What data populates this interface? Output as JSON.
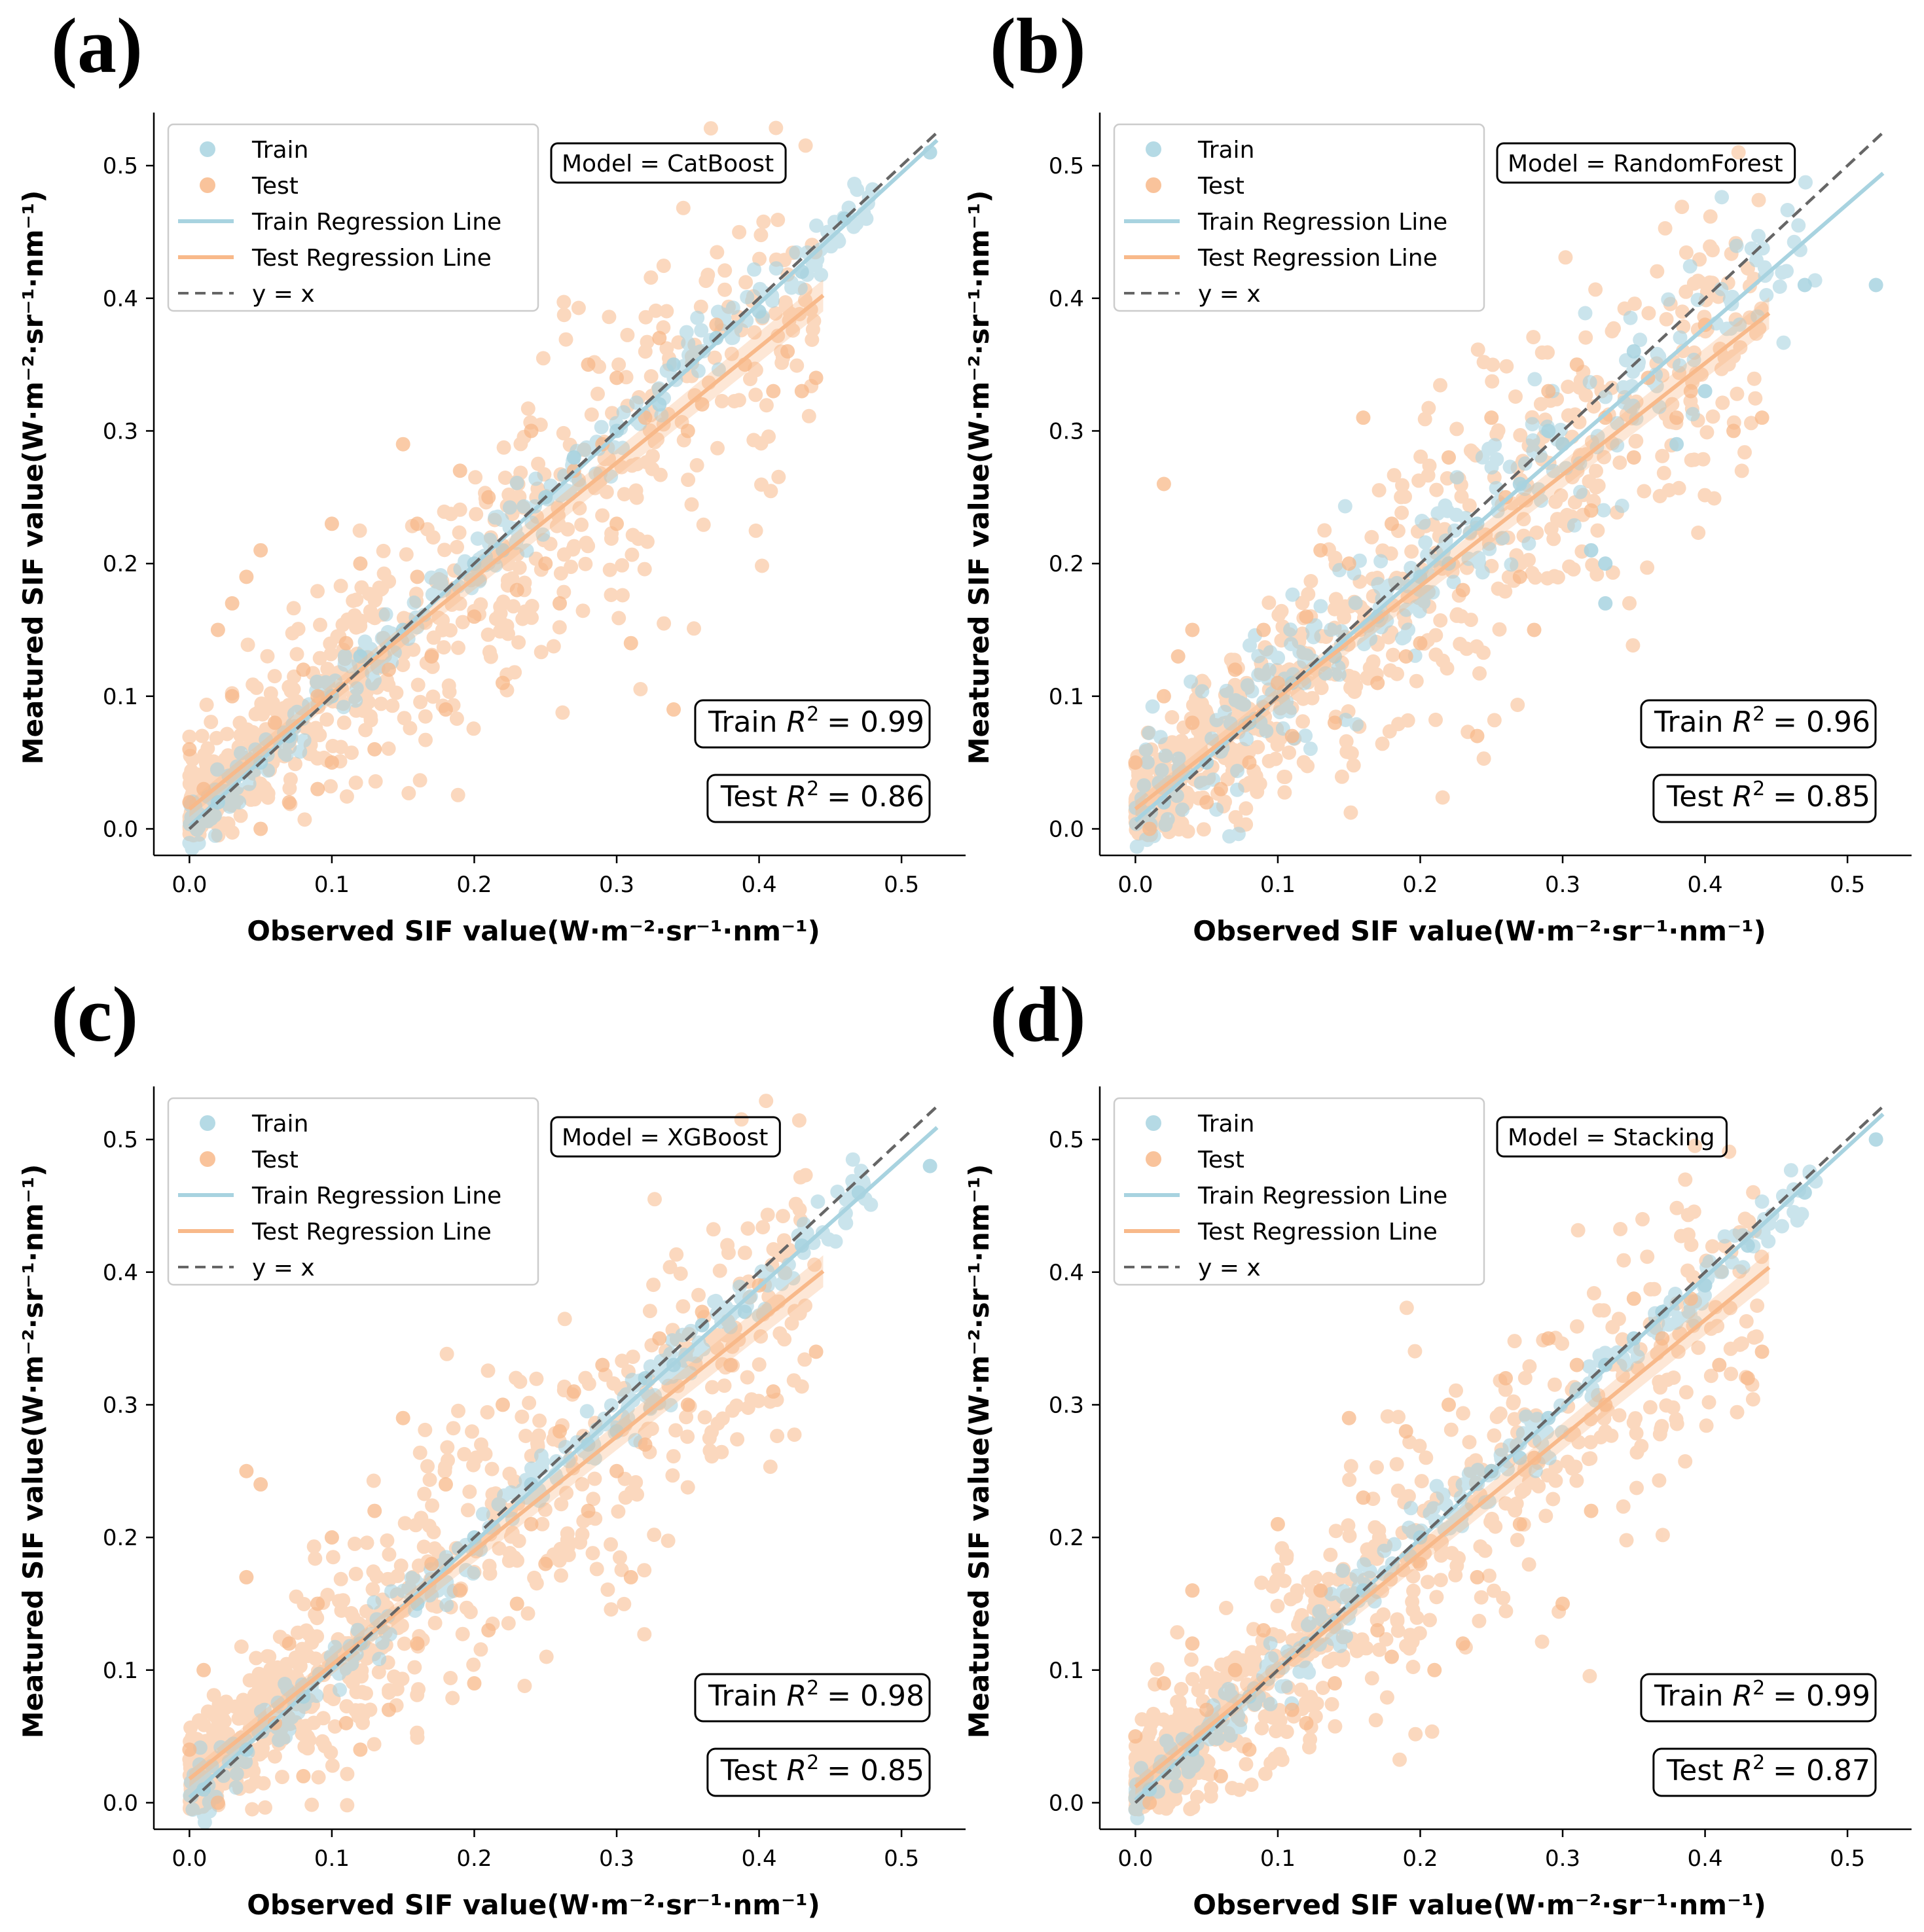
{
  "figure": {
    "x_axis_label": "Observed SIF value(W·m⁻²·sr⁻¹·nm⁻¹)",
    "y_axis_label": "Meatured SIF value(W·m⁻²·sr⁻¹·nm⁻¹)",
    "legend": {
      "train": "Train",
      "test": "Test",
      "train_line": "Train Regression Line",
      "test_line": "Test Regression Line",
      "identity": "y = x"
    },
    "r2_symbol": "R",
    "r2_exponent": "2"
  },
  "colors": {
    "train": "#a8d3e0",
    "test": "#f8b98a",
    "identity": "#666666",
    "axis": "#000000"
  },
  "chart_data": [
    {
      "type": "scatter",
      "panel": "(a)",
      "model_label": "Model = CatBoost",
      "train_r2_text": "Train",
      "train_r2_value": "= 0.99",
      "test_r2_text": "Test",
      "test_r2_value": "= 0.86",
      "train_r2": 0.99,
      "test_r2": 0.86,
      "train_line": {
        "slope": 0.985,
        "intercept": 0.002,
        "x_range": [
          0.0,
          0.525
        ]
      },
      "test_line": {
        "slope": 0.87,
        "intercept": 0.015,
        "x_range": [
          0.0,
          0.445
        ]
      },
      "xlim": [
        -0.025,
        0.545
      ],
      "ylim": [
        -0.02,
        0.54
      ],
      "xticks": [
        0.0,
        0.1,
        0.2,
        0.3,
        0.4,
        0.5
      ],
      "yticks": [
        0.0,
        0.1,
        0.2,
        0.3,
        0.4,
        0.5
      ],
      "tick_labels": [
        "0.0",
        "0.1",
        "0.2",
        "0.3",
        "0.4",
        "0.5"
      ],
      "test_points": [
        [
          0.0,
          0.06
        ],
        [
          0.02,
          0.15
        ],
        [
          0.03,
          0.17
        ],
        [
          0.05,
          0.21
        ],
        [
          0.04,
          0.19
        ],
        [
          0.01,
          0.03
        ],
        [
          0.03,
          0.1
        ],
        [
          0.06,
          0.08
        ],
        [
          0.08,
          0.12
        ],
        [
          0.1,
          0.23
        ],
        [
          0.1,
          0.05
        ],
        [
          0.12,
          0.2
        ],
        [
          0.14,
          0.12
        ],
        [
          0.15,
          0.29
        ],
        [
          0.16,
          0.23
        ],
        [
          0.17,
          0.13
        ],
        [
          0.19,
          0.27
        ],
        [
          0.2,
          0.16
        ],
        [
          0.22,
          0.11
        ],
        [
          0.24,
          0.3
        ],
        [
          0.25,
          0.2
        ],
        [
          0.27,
          0.27
        ],
        [
          0.28,
          0.35
        ],
        [
          0.3,
          0.34
        ],
        [
          0.3,
          0.23
        ],
        [
          0.31,
          0.14
        ],
        [
          0.33,
          0.37
        ],
        [
          0.34,
          0.09
        ],
        [
          0.35,
          0.3
        ],
        [
          0.37,
          0.38
        ],
        [
          0.39,
          0.35
        ],
        [
          0.41,
          0.33
        ],
        [
          0.43,
          0.33
        ],
        [
          0.44,
          0.34
        ],
        [
          0.42,
          0.36
        ],
        [
          0.07,
          0.02
        ],
        [
          0.09,
          0.03
        ],
        [
          0.13,
          0.06
        ],
        [
          0.18,
          0.09
        ],
        [
          0.23,
          0.18
        ],
        [
          0.26,
          0.17
        ],
        [
          0.29,
          0.29
        ],
        [
          0.32,
          0.31
        ],
        [
          0.36,
          0.32
        ],
        [
          0.05,
          0.0
        ],
        [
          0.0,
          0.02
        ],
        [
          0.11,
          0.14
        ],
        [
          0.21,
          0.25
        ],
        [
          0.16,
          0.19
        ],
        [
          0.09,
          0.1
        ]
      ],
      "train_points": [
        [
          0.46,
          0.46
        ],
        [
          0.52,
          0.51
        ],
        [
          0.4,
          0.39
        ],
        [
          0.37,
          0.37
        ],
        [
          0.34,
          0.35
        ],
        [
          0.3,
          0.3
        ],
        [
          0.25,
          0.25
        ],
        [
          0.2,
          0.2
        ],
        [
          0.15,
          0.15
        ],
        [
          0.1,
          0.1
        ],
        [
          0.05,
          0.05
        ],
        [
          0.02,
          0.02
        ],
        [
          0.43,
          0.42
        ],
        [
          0.33,
          0.32
        ],
        [
          0.27,
          0.28
        ],
        [
          0.22,
          0.21
        ],
        [
          0.12,
          0.13
        ],
        [
          0.07,
          0.07
        ]
      ]
    },
    {
      "type": "scatter",
      "panel": "(b)",
      "model_label": "Model = RandomForest",
      "train_r2_text": "Train",
      "train_r2_value": "= 0.96",
      "test_r2_text": "Test",
      "test_r2_value": "= 0.85",
      "train_r2": 0.96,
      "test_r2": 0.85,
      "train_line": {
        "slope": 0.93,
        "intercept": 0.006,
        "x_range": [
          0.0,
          0.525
        ]
      },
      "test_line": {
        "slope": 0.84,
        "intercept": 0.015,
        "x_range": [
          0.0,
          0.445
        ]
      },
      "xlim": [
        -0.025,
        0.545
      ],
      "ylim": [
        -0.02,
        0.54
      ],
      "xticks": [
        0.0,
        0.1,
        0.2,
        0.3,
        0.4,
        0.5
      ],
      "yticks": [
        0.0,
        0.1,
        0.2,
        0.3,
        0.4,
        0.5
      ],
      "tick_labels": [
        "0.0",
        "0.1",
        "0.2",
        "0.3",
        "0.4",
        "0.5"
      ],
      "test_points": [
        [
          0.0,
          0.05
        ],
        [
          0.02,
          0.1
        ],
        [
          0.03,
          0.13
        ],
        [
          0.04,
          0.15
        ],
        [
          0.06,
          0.03
        ],
        [
          0.07,
          0.12
        ],
        [
          0.09,
          0.15
        ],
        [
          0.1,
          0.11
        ],
        [
          0.12,
          0.16
        ],
        [
          0.13,
          0.21
        ],
        [
          0.15,
          0.2
        ],
        [
          0.16,
          0.31
        ],
        [
          0.17,
          0.11
        ],
        [
          0.18,
          0.23
        ],
        [
          0.2,
          0.14
        ],
        [
          0.22,
          0.28
        ],
        [
          0.23,
          0.18
        ],
        [
          0.25,
          0.31
        ],
        [
          0.26,
          0.25
        ],
        [
          0.27,
          0.19
        ],
        [
          0.29,
          0.33
        ],
        [
          0.3,
          0.29
        ],
        [
          0.31,
          0.35
        ],
        [
          0.33,
          0.31
        ],
        [
          0.35,
          0.28
        ],
        [
          0.36,
          0.34
        ],
        [
          0.38,
          0.31
        ],
        [
          0.4,
          0.38
        ],
        [
          0.42,
          0.3
        ],
        [
          0.44,
          0.31
        ],
        [
          0.02,
          0.26
        ],
        [
          0.05,
          0.02
        ],
        [
          0.08,
          0.05
        ],
        [
          0.11,
          0.07
        ],
        [
          0.14,
          0.08
        ],
        [
          0.19,
          0.13
        ],
        [
          0.24,
          0.07
        ],
        [
          0.28,
          0.15
        ],
        [
          0.32,
          0.24
        ],
        [
          0.39,
          0.33
        ],
        [
          0.01,
          0.0
        ],
        [
          0.04,
          0.08
        ]
      ],
      "train_points": [
        [
          0.52,
          0.41
        ],
        [
          0.47,
          0.41
        ],
        [
          0.4,
          0.33
        ],
        [
          0.38,
          0.29
        ],
        [
          0.33,
          0.17
        ],
        [
          0.33,
          0.2
        ],
        [
          0.32,
          0.21
        ],
        [
          0.3,
          0.29
        ],
        [
          0.27,
          0.26
        ],
        [
          0.24,
          0.23
        ],
        [
          0.2,
          0.19
        ],
        [
          0.17,
          0.16
        ],
        [
          0.14,
          0.13
        ],
        [
          0.11,
          0.11
        ],
        [
          0.08,
          0.08
        ],
        [
          0.05,
          0.05
        ],
        [
          0.02,
          0.02
        ],
        [
          0.35,
          0.36
        ],
        [
          0.22,
          0.2
        ],
        [
          0.29,
          0.3
        ]
      ]
    },
    {
      "type": "scatter",
      "panel": "(c)",
      "model_label": "Model = XGBoost",
      "train_r2_text": "Train",
      "train_r2_value": "= 0.98",
      "test_r2_text": "Test",
      "test_r2_value": "= 0.85",
      "train_r2": 0.98,
      "test_r2": 0.85,
      "train_line": {
        "slope": 0.962,
        "intercept": 0.004,
        "x_range": [
          0.0,
          0.525
        ]
      },
      "test_line": {
        "slope": 0.86,
        "intercept": 0.018,
        "x_range": [
          0.0,
          0.445
        ]
      },
      "xlim": [
        -0.025,
        0.545
      ],
      "ylim": [
        -0.02,
        0.54
      ],
      "xticks": [
        0.0,
        0.1,
        0.2,
        0.3,
        0.4,
        0.5
      ],
      "yticks": [
        0.0,
        0.1,
        0.2,
        0.3,
        0.4,
        0.5
      ],
      "tick_labels": [
        "0.0",
        "0.1",
        "0.2",
        "0.3",
        "0.4",
        "0.5"
      ],
      "test_points": [
        [
          0.0,
          0.04
        ],
        [
          0.01,
          0.1
        ],
        [
          0.04,
          0.25
        ],
        [
          0.05,
          0.24
        ],
        [
          0.04,
          0.17
        ],
        [
          0.06,
          0.06
        ],
        [
          0.07,
          0.12
        ],
        [
          0.09,
          0.15
        ],
        [
          0.1,
          0.2
        ],
        [
          0.11,
          0.06
        ],
        [
          0.13,
          0.22
        ],
        [
          0.15,
          0.29
        ],
        [
          0.16,
          0.12
        ],
        [
          0.18,
          0.24
        ],
        [
          0.19,
          0.16
        ],
        [
          0.2,
          0.09
        ],
        [
          0.22,
          0.3
        ],
        [
          0.24,
          0.21
        ],
        [
          0.26,
          0.28
        ],
        [
          0.27,
          0.31
        ],
        [
          0.29,
          0.33
        ],
        [
          0.3,
          0.25
        ],
        [
          0.31,
          0.17
        ],
        [
          0.33,
          0.35
        ],
        [
          0.35,
          0.3
        ],
        [
          0.36,
          0.37
        ],
        [
          0.38,
          0.33
        ],
        [
          0.4,
          0.39
        ],
        [
          0.41,
          0.31
        ],
        [
          0.44,
          0.34
        ],
        [
          0.08,
          0.02
        ],
        [
          0.12,
          0.04
        ],
        [
          0.14,
          0.07
        ],
        [
          0.21,
          0.13
        ],
        [
          0.25,
          0.18
        ],
        [
          0.28,
          0.22
        ],
        [
          0.32,
          0.27
        ],
        [
          0.02,
          0.0
        ],
        [
          0.17,
          0.18
        ],
        [
          0.23,
          0.15
        ]
      ],
      "train_points": [
        [
          0.52,
          0.48
        ],
        [
          0.47,
          0.46
        ],
        [
          0.43,
          0.42
        ],
        [
          0.39,
          0.37
        ],
        [
          0.36,
          0.36
        ],
        [
          0.32,
          0.32
        ],
        [
          0.28,
          0.27
        ],
        [
          0.24,
          0.24
        ],
        [
          0.2,
          0.2
        ],
        [
          0.16,
          0.15
        ],
        [
          0.12,
          0.12
        ],
        [
          0.08,
          0.08
        ],
        [
          0.04,
          0.04
        ],
        [
          0.01,
          0.01
        ],
        [
          0.3,
          0.28
        ],
        [
          0.34,
          0.33
        ]
      ]
    },
    {
      "type": "scatter",
      "panel": "(d)",
      "model_label": "Model = Stacking",
      "train_r2_text": "Train",
      "train_r2_value": "= 0.99",
      "test_r2_text": "Test",
      "test_r2_value": "= 0.87",
      "train_r2": 0.99,
      "test_r2": 0.87,
      "train_line": {
        "slope": 0.985,
        "intercept": 0.002,
        "x_range": [
          0.0,
          0.525
        ]
      },
      "test_line": {
        "slope": 0.88,
        "intercept": 0.012,
        "x_range": [
          0.0,
          0.445
        ]
      },
      "xlim": [
        -0.025,
        0.545
      ],
      "ylim": [
        -0.02,
        0.54
      ],
      "xticks": [
        0.0,
        0.1,
        0.2,
        0.3,
        0.4,
        0.5
      ],
      "yticks": [
        0.0,
        0.1,
        0.2,
        0.3,
        0.4,
        0.5
      ],
      "tick_labels": [
        "0.0",
        "0.1",
        "0.2",
        "0.3",
        "0.4",
        "0.5"
      ],
      "test_points": [
        [
          0.0,
          0.05
        ],
        [
          0.02,
          0.09
        ],
        [
          0.04,
          0.16
        ],
        [
          0.04,
          0.12
        ],
        [
          0.06,
          0.02
        ],
        [
          0.07,
          0.1
        ],
        [
          0.09,
          0.13
        ],
        [
          0.1,
          0.21
        ],
        [
          0.11,
          0.07
        ],
        [
          0.13,
          0.16
        ],
        [
          0.15,
          0.29
        ],
        [
          0.16,
          0.23
        ],
        [
          0.17,
          0.13
        ],
        [
          0.19,
          0.28
        ],
        [
          0.2,
          0.18
        ],
        [
          0.22,
          0.3
        ],
        [
          0.23,
          0.12
        ],
        [
          0.25,
          0.25
        ],
        [
          0.26,
          0.32
        ],
        [
          0.27,
          0.21
        ],
        [
          0.29,
          0.35
        ],
        [
          0.3,
          0.15
        ],
        [
          0.31,
          0.33
        ],
        [
          0.33,
          0.3
        ],
        [
          0.35,
          0.38
        ],
        [
          0.37,
          0.35
        ],
        [
          0.39,
          0.38
        ],
        [
          0.41,
          0.33
        ],
        [
          0.43,
          0.32
        ],
        [
          0.44,
          0.34
        ],
        [
          0.08,
          0.04
        ],
        [
          0.12,
          0.06
        ],
        [
          0.14,
          0.09
        ],
        [
          0.18,
          0.11
        ],
        [
          0.21,
          0.1
        ],
        [
          0.24,
          0.17
        ],
        [
          0.28,
          0.26
        ],
        [
          0.32,
          0.22
        ],
        [
          0.01,
          0.0
        ],
        [
          0.05,
          0.07
        ]
      ],
      "train_points": [
        [
          0.52,
          0.5
        ],
        [
          0.47,
          0.46
        ],
        [
          0.43,
          0.42
        ],
        [
          0.4,
          0.39
        ],
        [
          0.37,
          0.37
        ],
        [
          0.33,
          0.33
        ],
        [
          0.29,
          0.29
        ],
        [
          0.25,
          0.25
        ],
        [
          0.2,
          0.2
        ],
        [
          0.16,
          0.16
        ],
        [
          0.12,
          0.12
        ],
        [
          0.08,
          0.08
        ],
        [
          0.04,
          0.04
        ],
        [
          0.01,
          0.01
        ],
        [
          0.35,
          0.35
        ],
        [
          0.27,
          0.26
        ]
      ]
    }
  ]
}
